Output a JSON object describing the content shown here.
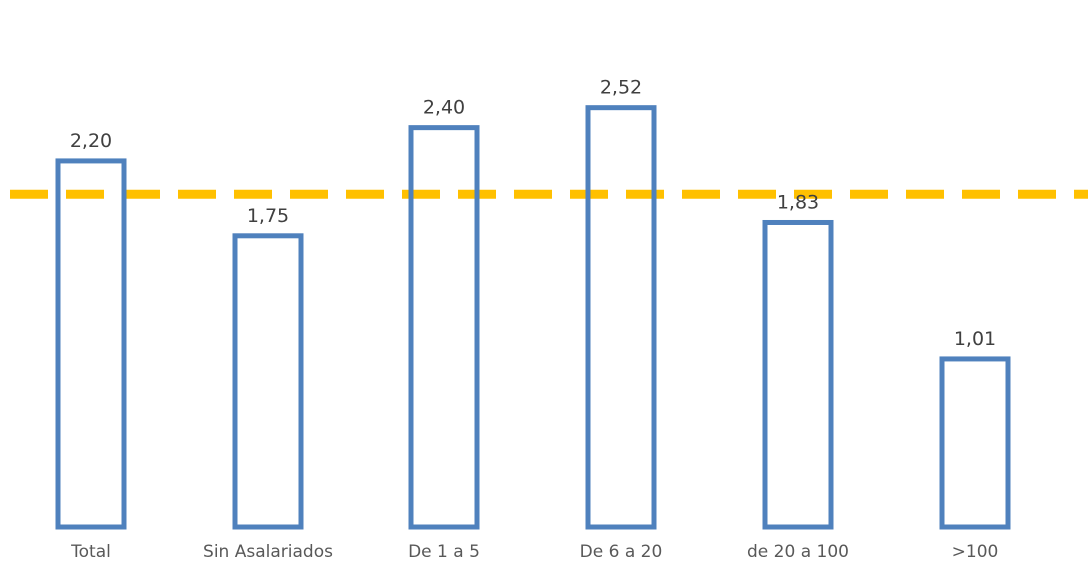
{
  "chart_data": {
    "type": "bar",
    "title": "",
    "xlabel": "",
    "ylabel": "",
    "categories": [
      "Total",
      "Sin Asalariados",
      "De 1 a 5",
      "De 6 a 20",
      "de 20 a 100",
      ">100"
    ],
    "values": [
      2.2,
      1.75,
      2.4,
      2.52,
      1.83,
      1.01
    ],
    "value_labels": [
      "2,20",
      "1,75",
      "2,40",
      "2,52",
      "1,83",
      "1,01"
    ],
    "reference_line": {
      "value": 2.0
    },
    "ylim": [
      0,
      2.8
    ],
    "grid": false,
    "legend": "none",
    "colors": {
      "bar_outline": "#4f81bd",
      "reference_line": "#ffc000"
    }
  }
}
